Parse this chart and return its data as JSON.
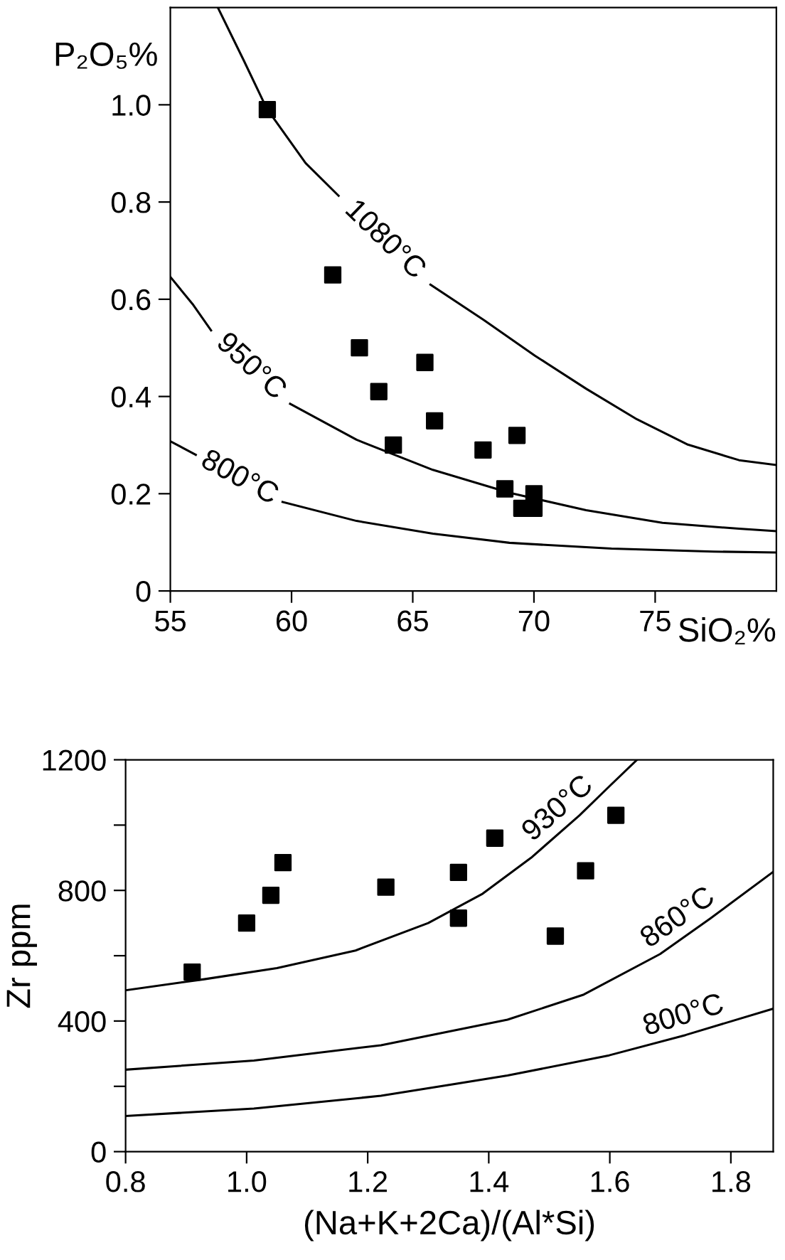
{
  "chart_data": [
    {
      "type": "scatter",
      "xlabel": "SiO₂%",
      "ylabel": "P₂O₅%",
      "xlim": [
        55,
        80
      ],
      "ylim": [
        0,
        1.2
      ],
      "xticks": [
        55,
        60,
        65,
        70,
        75
      ],
      "yticks": [
        {
          "value": 0,
          "label": "0"
        },
        {
          "value": 0.2,
          "label": "0.2"
        },
        {
          "value": 0.4,
          "label": "0.4"
        },
        {
          "value": 0.6,
          "label": "0.6"
        },
        {
          "value": 0.8,
          "label": "0.8"
        },
        {
          "value": 1.0,
          "label": "1.0"
        }
      ],
      "series": [
        {
          "color": "#000000",
          "marker": "square",
          "x": [
            59.0,
            61.7,
            62.8,
            65.5,
            63.6,
            65.9,
            64.2,
            67.9,
            69.3,
            68.8,
            70.0,
            69.5,
            70.0
          ],
          "values": [
            0.99,
            0.65,
            0.5,
            0.47,
            0.41,
            0.35,
            0.3,
            0.29,
            0.32,
            0.21,
            0.2,
            0.17,
            0.17
          ]
        },
        {
          "type": "line",
          "name": "1080°C",
          "color": "#000000",
          "x": [
            56.96,
            58.05,
            58.98,
            60.58,
            61.94,
            63.5,
            65.73,
            67.94,
            70.04,
            72.15,
            74.25,
            76.35,
            78.46,
            80
          ],
          "values": [
            1.2,
            1.089,
            0.992,
            0.88,
            0.813,
            null,
            0.63,
            0.557,
            0.484,
            0.416,
            0.353,
            0.301,
            0.269,
            0.259
          ]
        },
        {
          "type": "line",
          "name": "950°C",
          "color": "#000000",
          "x": [
            55,
            55.95,
            56.68,
            58.2,
            59.94,
            62.68,
            65.83,
            68.99,
            72.15,
            75.3,
            78.46,
            80
          ],
          "values": [
            0.646,
            0.588,
            0.536,
            null,
            0.385,
            0.311,
            0.249,
            0.202,
            0.166,
            0.14,
            0.128,
            0.123
          ]
        },
        {
          "type": "line",
          "name": "800°C",
          "color": "#000000",
          "x": [
            55,
            56.05,
            57.8,
            59.63,
            62.68,
            65.83,
            68.99,
            73.2,
            77.41,
            80
          ],
          "values": [
            0.308,
            0.28,
            null,
            0.183,
            0.144,
            0.118,
            0.099,
            0.087,
            0.081,
            0.079
          ]
        }
      ]
    },
    {
      "type": "scatter",
      "xlabel": "(Na+K+2Ca)/(Al*Si)",
      "ylabel": "Zr ppm",
      "xlim": [
        0.8,
        1.87
      ],
      "ylim": [
        0,
        1200
      ],
      "xticks": [
        {
          "value": 0.8,
          "label": "0.8"
        },
        {
          "value": 1.0,
          "label": "1.0"
        },
        {
          "value": 1.2,
          "label": "1.2"
        },
        {
          "value": 1.4,
          "label": "1.4"
        },
        {
          "value": 1.6,
          "label": "1.6"
        },
        {
          "value": 1.8,
          "label": "1.8"
        }
      ],
      "yticks": [
        0,
        {
          "value": 200,
          "label": null
        },
        400,
        {
          "value": 600,
          "label": null
        },
        800,
        {
          "value": 1000,
          "label": null
        },
        1200
      ],
      "series": [
        {
          "color": "#000000",
          "marker": "square",
          "x": [
            0.91,
            1.0,
            1.04,
            1.06,
            1.23,
            1.35,
            1.35,
            1.41,
            1.51,
            1.56,
            1.61
          ],
          "values": [
            550,
            700,
            785,
            885,
            810,
            855,
            715,
            960,
            660,
            860,
            1030
          ]
        },
        {
          "type": "line",
          "name": "930°C",
          "color": "#000000",
          "x": [
            0.8,
            0.93,
            1.05,
            1.18,
            1.3,
            1.39,
            1.47,
            1.55,
            1.6,
            1.645
          ],
          "values": [
            494,
            528,
            562,
            616,
            700,
            790,
            900,
            1030,
            1120,
            1200
          ]
        },
        {
          "type": "line",
          "name": "860°C",
          "color": "#000000",
          "x": [
            0.8,
            1.012,
            1.222,
            1.431,
            1.557,
            1.683,
            1.766,
            1.87
          ],
          "values": [
            251,
            279,
            326,
            404,
            481,
            605,
            714,
            857
          ]
        },
        {
          "type": "line",
          "name": "800°C",
          "color": "#000000",
          "x": [
            0.8,
            1.012,
            1.222,
            1.431,
            1.599,
            1.725,
            1.87
          ],
          "values": [
            109,
            132,
            171,
            233,
            295,
            357,
            438
          ]
        }
      ]
    }
  ]
}
